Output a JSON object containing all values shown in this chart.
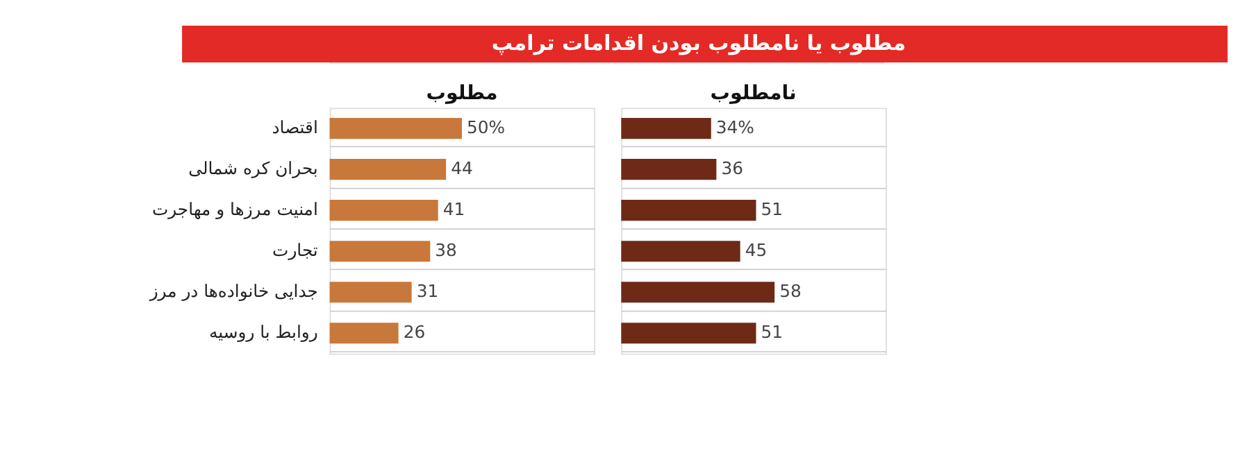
{
  "chart_data": [
    {
      "type": "bar",
      "orientation": "horizontal",
      "title": "مطلوب یا نامطلوب بودن اقدامات ترامپ",
      "categories": [
        "اقتصاد",
        "بحران کره شمالی",
        "امنیت مرزها و مهاجرت",
        "تجارت",
        "جدایی خانواده‌ها در مرز",
        "روابط با روسیه"
      ],
      "series": [
        {
          "name": "مطلوب",
          "color": "#c8783a",
          "values": [
            50,
            44,
            41,
            38,
            31,
            26
          ],
          "value_labels": [
            "50%",
            "44",
            "41",
            "38",
            "31",
            "26"
          ]
        }
      ],
      "xlim": [
        0,
        100
      ],
      "grid": "y",
      "tick_labels": "y"
    },
    {
      "type": "bar",
      "orientation": "horizontal",
      "categories": [
        null,
        null,
        null,
        null,
        null,
        null
      ],
      "series": [
        {
          "name": "نامطلوب",
          "color": "#6e2a17",
          "values": [
            34,
            36,
            51,
            45,
            58,
            51
          ],
          "value_labels": [
            "34%",
            "36",
            "51",
            "45",
            "58",
            "51"
          ]
        }
      ],
      "xlim": [
        0,
        100
      ],
      "grid": "y",
      "tick_labels": false
    }
  ]
}
